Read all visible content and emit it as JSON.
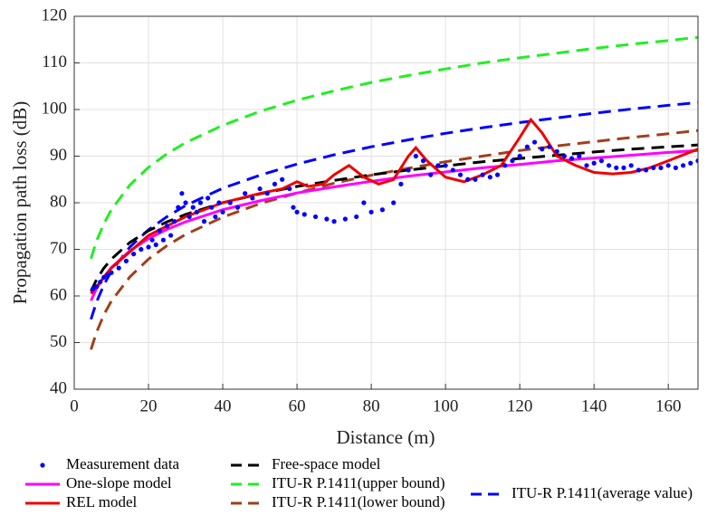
{
  "chart_data": {
    "type": "line",
    "x_label": "Distance (m)",
    "y_label": "Propagation path loss (dB)",
    "xlim": [
      0,
      168
    ],
    "ylim": [
      40,
      120
    ],
    "xticks": [
      0,
      20,
      40,
      60,
      80,
      100,
      120,
      140,
      160
    ],
    "yticks": [
      40,
      50,
      60,
      70,
      80,
      90,
      100,
      110,
      120
    ],
    "grid": true,
    "series": [
      {
        "name": "Measurement data",
        "color": "#0000ff",
        "style": "dots",
        "x": [
          5,
          6,
          7,
          8,
          9,
          10,
          12,
          14,
          16,
          18,
          20,
          21,
          22,
          23,
          24,
          25,
          26,
          27,
          28,
          29,
          30,
          31,
          32,
          33,
          34,
          35,
          36,
          37,
          38,
          39,
          40,
          42,
          44,
          46,
          48,
          50,
          52,
          54,
          56,
          58,
          59,
          60,
          62,
          65,
          68,
          70,
          73,
          76,
          78,
          80,
          83,
          86,
          88,
          90,
          92,
          94,
          96,
          98,
          100,
          102,
          104,
          106,
          108,
          110,
          112,
          114,
          116,
          118,
          120,
          122,
          124,
          126,
          128,
          130,
          132,
          134,
          136,
          138,
          140,
          142,
          144,
          146,
          148,
          150,
          152,
          154,
          156,
          158,
          160,
          162,
          164,
          166,
          168
        ],
        "values": [
          61.5,
          62,
          63,
          64,
          64.5,
          65,
          66,
          67.5,
          69,
          70,
          70.5,
          72,
          71,
          74,
          72,
          75,
          73,
          76,
          79,
          82,
          80,
          77,
          79,
          78,
          80,
          76,
          81,
          79,
          77,
          80,
          78,
          80,
          79,
          82,
          81,
          83,
          82,
          84,
          85,
          83,
          79,
          78,
          77.5,
          77,
          76.5,
          76,
          76.5,
          77,
          80,
          78,
          78.5,
          80,
          84,
          87,
          90,
          89,
          86,
          88,
          88,
          87,
          86,
          85,
          85,
          86,
          85.5,
          86,
          88,
          89,
          90,
          92,
          93,
          91.5,
          92,
          91,
          90,
          89.5,
          90,
          88,
          88.5,
          89,
          88,
          87.5,
          87.5,
          88,
          87,
          87,
          87.5,
          87.5,
          88,
          87.5,
          88,
          88.5,
          89
        ]
      },
      {
        "name": "One-slope model",
        "color": "#ff00ff",
        "style": "solid",
        "x": [
          4.5,
          6,
          8,
          10,
          15,
          20,
          25,
          30,
          40,
          50,
          60,
          70,
          80,
          90,
          100,
          110,
          120,
          130,
          140,
          150,
          160,
          168
        ],
        "values": [
          59,
          61.6,
          64.1,
          66.1,
          69.7,
          72.3,
          74.3,
          75.9,
          78.5,
          80.4,
          82.1,
          83.4,
          84.6,
          85.7,
          86.6,
          87.5,
          88.2,
          89,
          89.6,
          90.2,
          90.8,
          91.2
        ]
      },
      {
        "name": "REL model",
        "color": "#ee0000",
        "style": "solid",
        "x": [
          4.5,
          10,
          20,
          30,
          40,
          50,
          56,
          60,
          63,
          67,
          70,
          74,
          78,
          82,
          86,
          90,
          92,
          95,
          100,
          105,
          110,
          115,
          120,
          123,
          126,
          130,
          135,
          140,
          145,
          150,
          155,
          160,
          168
        ],
        "values": [
          60.5,
          66,
          73,
          77,
          80,
          82,
          83,
          84.5,
          83.5,
          84,
          86,
          88,
          85.5,
          84,
          85,
          90,
          91.8,
          89,
          85.5,
          84.5,
          86,
          88,
          94,
          97.8,
          95,
          90,
          88,
          86.5,
          86.2,
          86.5,
          87.5,
          89,
          91.5
        ]
      },
      {
        "name": "Free-space model",
        "color": "#000000",
        "style": "dashed",
        "x": [
          4.5,
          6,
          8,
          10,
          15,
          20,
          25,
          30,
          40,
          50,
          60,
          70,
          80,
          90,
          100,
          110,
          120,
          130,
          140,
          150,
          160,
          168
        ],
        "values": [
          61,
          63.5,
          66,
          67.9,
          71.5,
          74,
          75.9,
          77.5,
          80,
          81.9,
          83.5,
          84.8,
          86,
          87,
          87.9,
          88.8,
          89.5,
          90.2,
          90.9,
          91.5,
          92,
          92.4
        ]
      },
      {
        "name": "ITU-R P.1411(upper bound)",
        "color": "#22ee22",
        "style": "dashed",
        "x": [
          4.5,
          6,
          8,
          10,
          15,
          20,
          25,
          30,
          40,
          50,
          60,
          70,
          80,
          90,
          100,
          110,
          120,
          130,
          140,
          150,
          160,
          168
        ],
        "values": [
          68,
          71.8,
          75.5,
          78.5,
          83.8,
          87.6,
          90.5,
          92.9,
          96.6,
          99.6,
          102,
          104,
          105.8,
          107.3,
          108.7,
          110,
          111.1,
          112.1,
          113.1,
          114,
          114.8,
          115.5
        ]
      },
      {
        "name": "ITU-R P.1411(lower bound)",
        "color": "#a0401a",
        "style": "dashed",
        "x": [
          4.5,
          6,
          8,
          10,
          15,
          20,
          25,
          30,
          40,
          50,
          60,
          70,
          80,
          90,
          100,
          110,
          120,
          130,
          140,
          150,
          160,
          168
        ],
        "values": [
          48.5,
          52.2,
          56,
          58.9,
          64.1,
          67.9,
          70.8,
          73.2,
          76.9,
          79.8,
          82.1,
          84.2,
          85.9,
          87.4,
          88.8,
          90,
          91.2,
          92.2,
          93.1,
          94,
          94.8,
          95.5
        ]
      },
      {
        "name": "ITU-R P.1411(average value)",
        "color": "#0000ff",
        "style": "dashed",
        "x": [
          4.5,
          6,
          8,
          10,
          15,
          20,
          25,
          30,
          40,
          50,
          60,
          70,
          80,
          90,
          100,
          110,
          120,
          130,
          140,
          150,
          160,
          168
        ],
        "values": [
          55,
          58.7,
          62.4,
          65.3,
          70.5,
          74.2,
          77,
          79.4,
          83.1,
          85.9,
          88.3,
          90.3,
          92,
          93.5,
          94.9,
          96.1,
          97.2,
          98.2,
          99.2,
          100.1,
          100.9,
          101.5
        ]
      }
    ]
  }
}
